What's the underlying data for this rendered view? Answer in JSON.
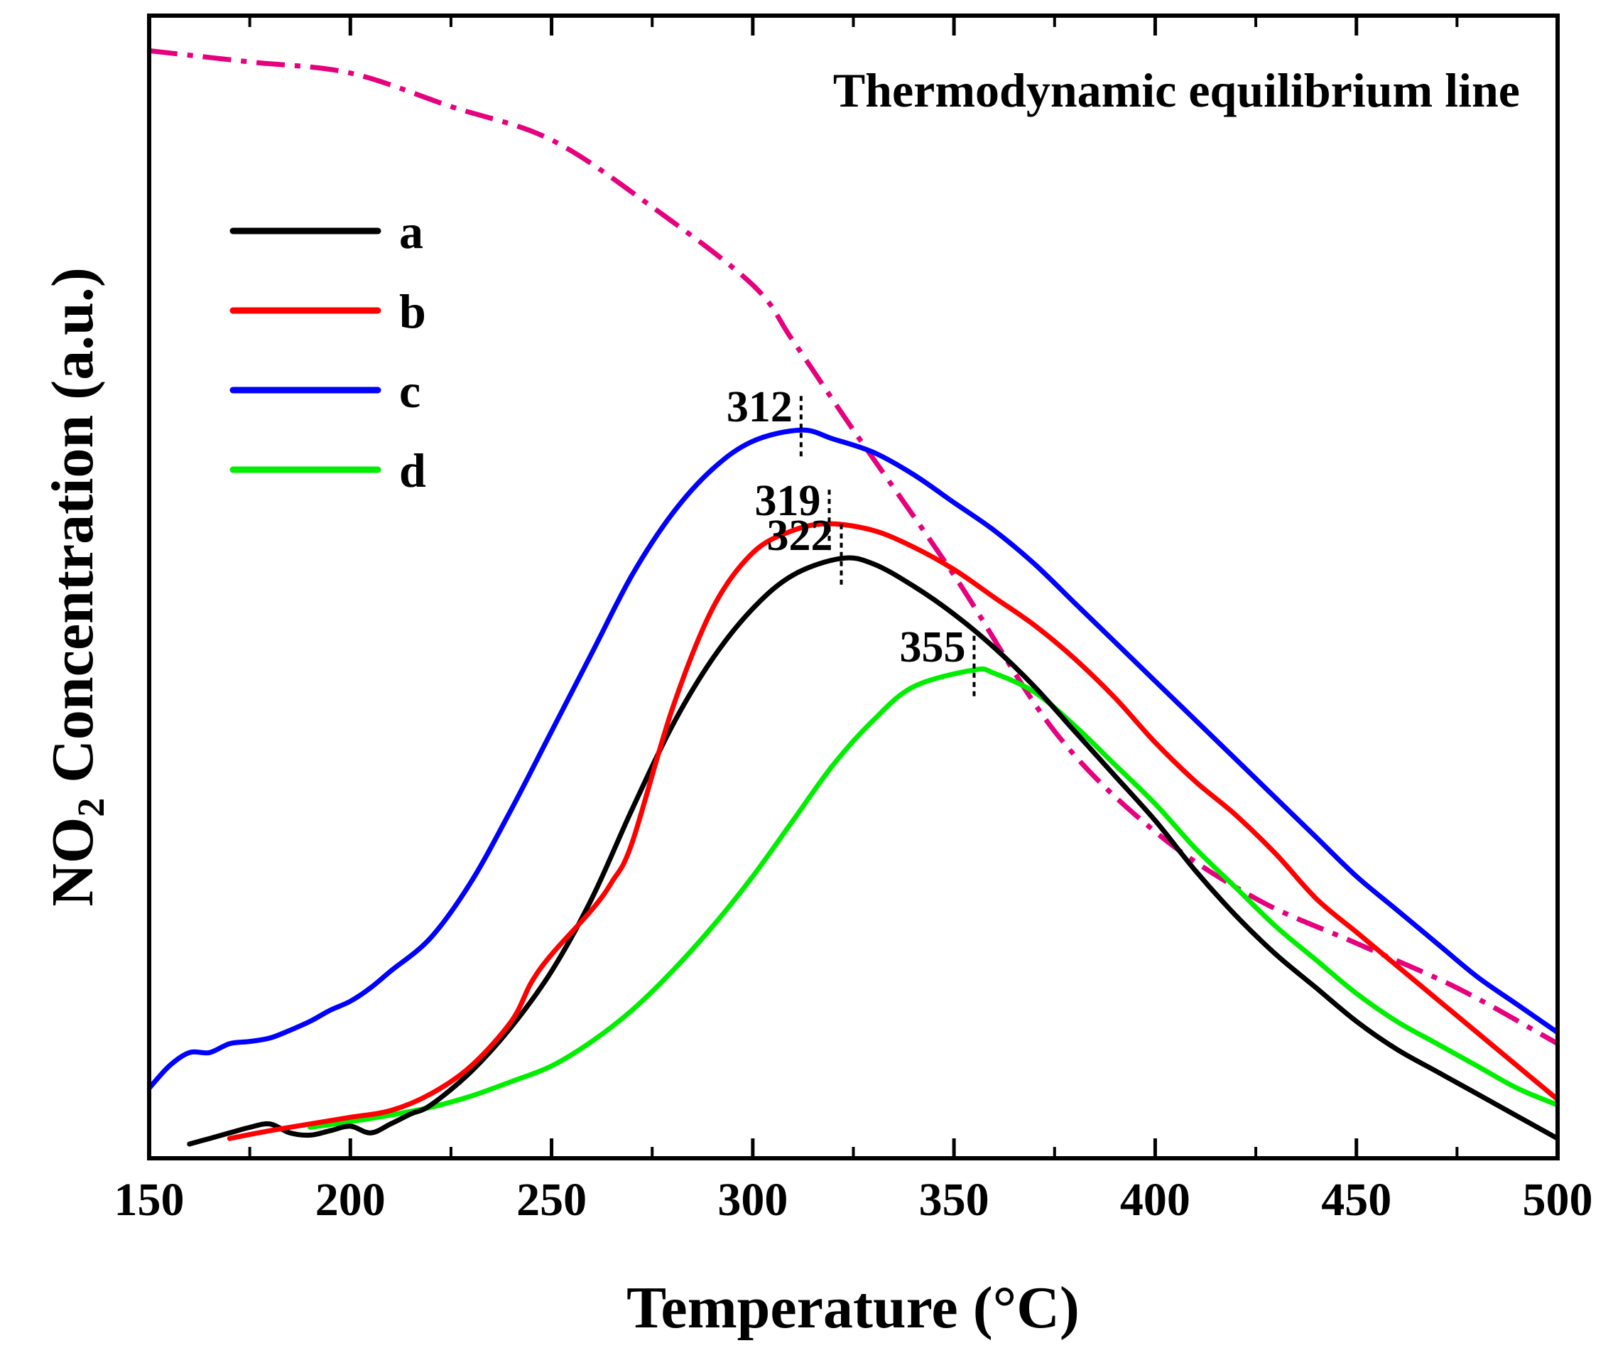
{
  "chart_data": {
    "type": "line",
    "title": "",
    "xlabel": "Temperature (°C)",
    "ylabel": {
      "prefix": "NO",
      "subscript": "2",
      "suffix": " Concentration (a.u.)"
    },
    "xlim": [
      150,
      500
    ],
    "ylim": [
      0,
      1.0
    ],
    "x_ticks": [
      "150",
      "200",
      "250",
      "300",
      "350",
      "400",
      "450",
      "500"
    ],
    "annotation": "Thermodynamic equilibrium line",
    "equilibrium": {
      "name": "Thermodynamic equilibrium line",
      "color": "#e6007e",
      "style": "dash-dot",
      "x": [
        150,
        175,
        200,
        225,
        250,
        275,
        300,
        310,
        325,
        350,
        375,
        400,
        425,
        450,
        475,
        500
      ],
      "y": [
        0.98,
        0.97,
        0.96,
        0.93,
        0.9,
        0.84,
        0.77,
        0.72,
        0.64,
        0.51,
        0.37,
        0.28,
        0.22,
        0.18,
        0.14,
        0.09
      ]
    },
    "series": [
      {
        "name": "a",
        "color": "#000000",
        "x": [
          160,
          165,
          170,
          175,
          180,
          185,
          190,
          195,
          200,
          205,
          210,
          215,
          220,
          230,
          240,
          250,
          260,
          270,
          280,
          290,
          300,
          310,
          322,
          330,
          340,
          350,
          360,
          370,
          380,
          390,
          400,
          410,
          420,
          430,
          440,
          450,
          460,
          470,
          480,
          490,
          500
        ],
        "y": [
          0.0,
          0.005,
          0.01,
          0.015,
          0.018,
          0.01,
          0.008,
          0.012,
          0.016,
          0.01,
          0.018,
          0.027,
          0.035,
          0.065,
          0.105,
          0.155,
          0.22,
          0.3,
          0.375,
          0.435,
          0.48,
          0.51,
          0.525,
          0.52,
          0.5,
          0.475,
          0.445,
          0.41,
          0.37,
          0.33,
          0.29,
          0.245,
          0.205,
          0.17,
          0.14,
          0.11,
          0.085,
          0.065,
          0.045,
          0.025,
          0.005
        ]
      },
      {
        "name": "b",
        "color": "#ff0000",
        "x": [
          170,
          180,
          190,
          200,
          210,
          220,
          230,
          240,
          245,
          250,
          260,
          265,
          270,
          280,
          290,
          300,
          310,
          319,
          330,
          340,
          350,
          360,
          370,
          380,
          390,
          400,
          410,
          420,
          430,
          440,
          450,
          460,
          470,
          480,
          490,
          500
        ],
        "y": [
          0.005,
          0.012,
          0.018,
          0.024,
          0.03,
          0.045,
          0.07,
          0.11,
          0.145,
          0.17,
          0.21,
          0.235,
          0.27,
          0.39,
          0.48,
          0.53,
          0.55,
          0.556,
          0.55,
          0.535,
          0.515,
          0.49,
          0.465,
          0.435,
          0.4,
          0.36,
          0.325,
          0.295,
          0.26,
          0.22,
          0.19,
          0.16,
          0.13,
          0.1,
          0.07,
          0.04
        ]
      },
      {
        "name": "c",
        "color": "#0000ff",
        "x": [
          150,
          155,
          160,
          165,
          170,
          175,
          180,
          185,
          190,
          195,
          200,
          205,
          210,
          220,
          230,
          240,
          250,
          260,
          270,
          280,
          290,
          300,
          312,
          320,
          330,
          340,
          350,
          360,
          370,
          380,
          390,
          400,
          410,
          420,
          430,
          440,
          450,
          460,
          470,
          480,
          490,
          500
        ],
        "y": [
          0.05,
          0.07,
          0.082,
          0.082,
          0.09,
          0.092,
          0.095,
          0.102,
          0.11,
          0.12,
          0.128,
          0.14,
          0.155,
          0.185,
          0.235,
          0.3,
          0.37,
          0.44,
          0.51,
          0.565,
          0.605,
          0.63,
          0.64,
          0.632,
          0.62,
          0.6,
          0.575,
          0.55,
          0.52,
          0.485,
          0.45,
          0.415,
          0.38,
          0.345,
          0.31,
          0.275,
          0.24,
          0.21,
          0.18,
          0.15,
          0.125,
          0.1
        ]
      },
      {
        "name": "d",
        "color": "#00ee00",
        "x": [
          190,
          200,
          210,
          220,
          230,
          240,
          250,
          260,
          270,
          280,
          290,
          300,
          310,
          320,
          330,
          340,
          355,
          360,
          370,
          380,
          390,
          400,
          410,
          420,
          430,
          440,
          450,
          460,
          470,
          480,
          490,
          500
        ],
        "y": [
          0.015,
          0.02,
          0.026,
          0.033,
          0.043,
          0.056,
          0.07,
          0.092,
          0.12,
          0.155,
          0.195,
          0.24,
          0.29,
          0.34,
          0.38,
          0.41,
          0.425,
          0.422,
          0.405,
          0.375,
          0.34,
          0.305,
          0.265,
          0.23,
          0.195,
          0.165,
          0.135,
          0.11,
          0.09,
          0.07,
          0.05,
          0.035
        ]
      }
    ],
    "peaks": [
      {
        "series": "c",
        "label": "312",
        "x": 312
      },
      {
        "series": "b",
        "label": "319",
        "x": 319
      },
      {
        "series": "a",
        "label": "322",
        "x": 322
      },
      {
        "series": "d",
        "label": "355",
        "x": 355
      }
    ],
    "legend_position": "top-left"
  }
}
